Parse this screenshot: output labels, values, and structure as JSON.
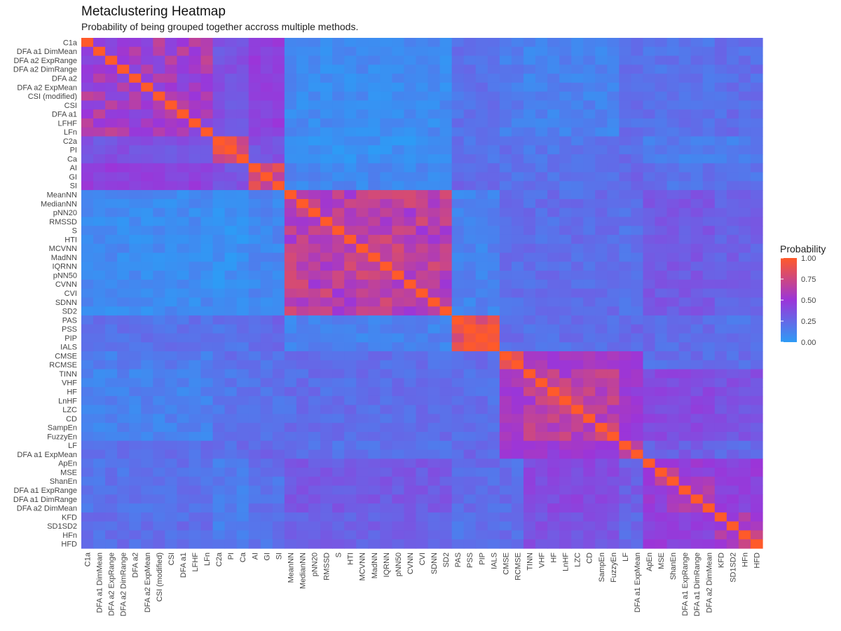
{
  "chart_data": {
    "type": "heatmap",
    "title": "Metaclustering Heatmap",
    "subtitle": "Probability of being grouped together accross multiple methods.",
    "xlabel": "",
    "ylabel": "",
    "categories": [
      "C1a",
      "DFA a1 DimMean",
      "DFA a2 ExpRange",
      "DFA a2 DimRange",
      "DFA a2",
      "DFA a2 ExpMean",
      "CSI (modified)",
      "CSI",
      "DFA a1",
      "LFHF",
      "LFn",
      "C2a",
      "PI",
      "Ca",
      "AI",
      "GI",
      "SI",
      "MeanNN",
      "MedianNN",
      "pNN20",
      "RMSSD",
      "S",
      "HTI",
      "MCVNN",
      "MadNN",
      "IQRNN",
      "pNN50",
      "CVNN",
      "CVI",
      "SDNN",
      "SD2",
      "PAS",
      "PSS",
      "PIP",
      "IALS",
      "CMSE",
      "RCMSE",
      "TINN",
      "VHF",
      "HF",
      "LnHF",
      "LZC",
      "CD",
      "SampEn",
      "FuzzyEn",
      "LF",
      "DFA a1 ExpMean",
      "ApEn",
      "MSE",
      "ShanEn",
      "DFA a1 ExpRange",
      "DFA a1 DimRange",
      "DFA a2 DimMean",
      "KFD",
      "SD1SD2",
      "HFn",
      "HFD"
    ],
    "groups": [
      {
        "start": 0,
        "end": 10,
        "within": 0.55
      },
      {
        "start": 11,
        "end": 13,
        "within": 0.85
      },
      {
        "start": 14,
        "end": 16,
        "within": 0.75
      },
      {
        "start": 17,
        "end": 30,
        "within": 0.65
      },
      {
        "start": 31,
        "end": 34,
        "within": 0.85
      },
      {
        "start": 35,
        "end": 36,
        "within": 0.95
      },
      {
        "start": 37,
        "end": 44,
        "within": 0.65
      },
      {
        "start": 45,
        "end": 46,
        "within": 0.6
      },
      {
        "start": 47,
        "end": 52,
        "within": 0.55
      },
      {
        "start": 53,
        "end": 56,
        "within": 0.6
      }
    ],
    "group_affinity": [
      [
        1.0,
        0.35,
        0.45,
        0.08,
        0.2,
        0.15,
        0.12,
        0.22,
        0.2,
        0.22
      ],
      [
        0.35,
        1.0,
        0.35,
        0.05,
        0.2,
        0.22,
        0.18,
        0.22,
        0.15,
        0.15
      ],
      [
        0.45,
        0.35,
        1.0,
        0.1,
        0.25,
        0.2,
        0.2,
        0.25,
        0.2,
        0.2
      ],
      [
        0.08,
        0.05,
        0.1,
        1.0,
        0.12,
        0.22,
        0.22,
        0.2,
        0.32,
        0.28
      ],
      [
        0.2,
        0.2,
        0.25,
        0.12,
        1.0,
        0.22,
        0.22,
        0.25,
        0.22,
        0.2
      ],
      [
        0.15,
        0.22,
        0.2,
        0.22,
        0.22,
        1.0,
        0.55,
        0.55,
        0.22,
        0.22
      ],
      [
        0.12,
        0.18,
        0.2,
        0.22,
        0.22,
        0.55,
        1.0,
        0.5,
        0.4,
        0.35
      ],
      [
        0.22,
        0.22,
        0.25,
        0.2,
        0.25,
        0.55,
        0.5,
        1.0,
        0.3,
        0.25
      ],
      [
        0.2,
        0.15,
        0.2,
        0.32,
        0.22,
        0.22,
        0.4,
        0.3,
        1.0,
        0.45
      ],
      [
        0.22,
        0.15,
        0.2,
        0.28,
        0.2,
        0.22,
        0.35,
        0.25,
        0.45,
        1.0
      ]
    ],
    "color_scale": {
      "low": "#2E9BF5",
      "mid": "#9B35D9",
      "high": "#FF5A2A"
    },
    "legend": {
      "title": "Probability",
      "ticks": [
        "1.00",
        "0.75",
        "0.50",
        "0.25",
        "0.00"
      ],
      "position": "right"
    },
    "value_range": [
      0,
      1
    ]
  }
}
